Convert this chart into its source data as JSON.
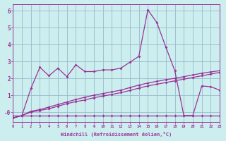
{
  "xlabel": "Windchill (Refroidissement éolien,°C)",
  "x": [
    0,
    1,
    2,
    3,
    4,
    5,
    6,
    7,
    8,
    9,
    10,
    11,
    12,
    13,
    14,
    15,
    16,
    17,
    18,
    19,
    20,
    21,
    22,
    23
  ],
  "line1_flat": [
    -0.2,
    -0.2,
    -0.2,
    -0.2,
    -0.2,
    -0.2,
    -0.2,
    -0.2,
    -0.2,
    -0.2,
    -0.2,
    -0.2,
    -0.2,
    -0.2,
    -0.2,
    -0.2,
    -0.2,
    -0.2,
    -0.2,
    -0.2,
    -0.2,
    -0.2,
    -0.2,
    -0.2
  ],
  "line2_gradual": [
    -0.35,
    -0.2,
    0.05,
    0.15,
    0.3,
    0.45,
    0.6,
    0.75,
    0.88,
    1.0,
    1.1,
    1.2,
    1.3,
    1.45,
    1.6,
    1.72,
    1.82,
    1.92,
    2.0,
    2.1,
    2.2,
    2.3,
    2.38,
    2.45
  ],
  "line3_wavy": [
    -0.35,
    -0.2,
    1.4,
    2.65,
    2.15,
    2.6,
    2.1,
    2.8,
    2.4,
    2.4,
    2.5,
    2.5,
    2.6,
    2.95,
    3.3,
    6.05,
    5.3,
    3.85,
    2.45,
    -0.2,
    -0.2,
    1.55,
    1.5,
    1.3
  ],
  "line4_mid": [
    -0.35,
    -0.2,
    0.0,
    0.1,
    0.2,
    0.35,
    0.5,
    0.62,
    0.72,
    0.85,
    0.95,
    1.05,
    1.15,
    1.28,
    1.42,
    1.55,
    1.65,
    1.75,
    1.85,
    1.95,
    2.05,
    2.15,
    2.25,
    2.35
  ],
  "line_color": "#993399",
  "bg_color": "#cceeee",
  "grid_color": "#99bbcc",
  "ylim": [
    -0.6,
    6.4
  ],
  "xlim": [
    0,
    23
  ],
  "yticks": [
    0,
    1,
    2,
    3,
    4,
    5,
    6
  ],
  "xticks": [
    0,
    1,
    2,
    3,
    4,
    5,
    6,
    7,
    8,
    9,
    10,
    11,
    12,
    13,
    14,
    15,
    16,
    17,
    18,
    19,
    20,
    21,
    22,
    23
  ]
}
